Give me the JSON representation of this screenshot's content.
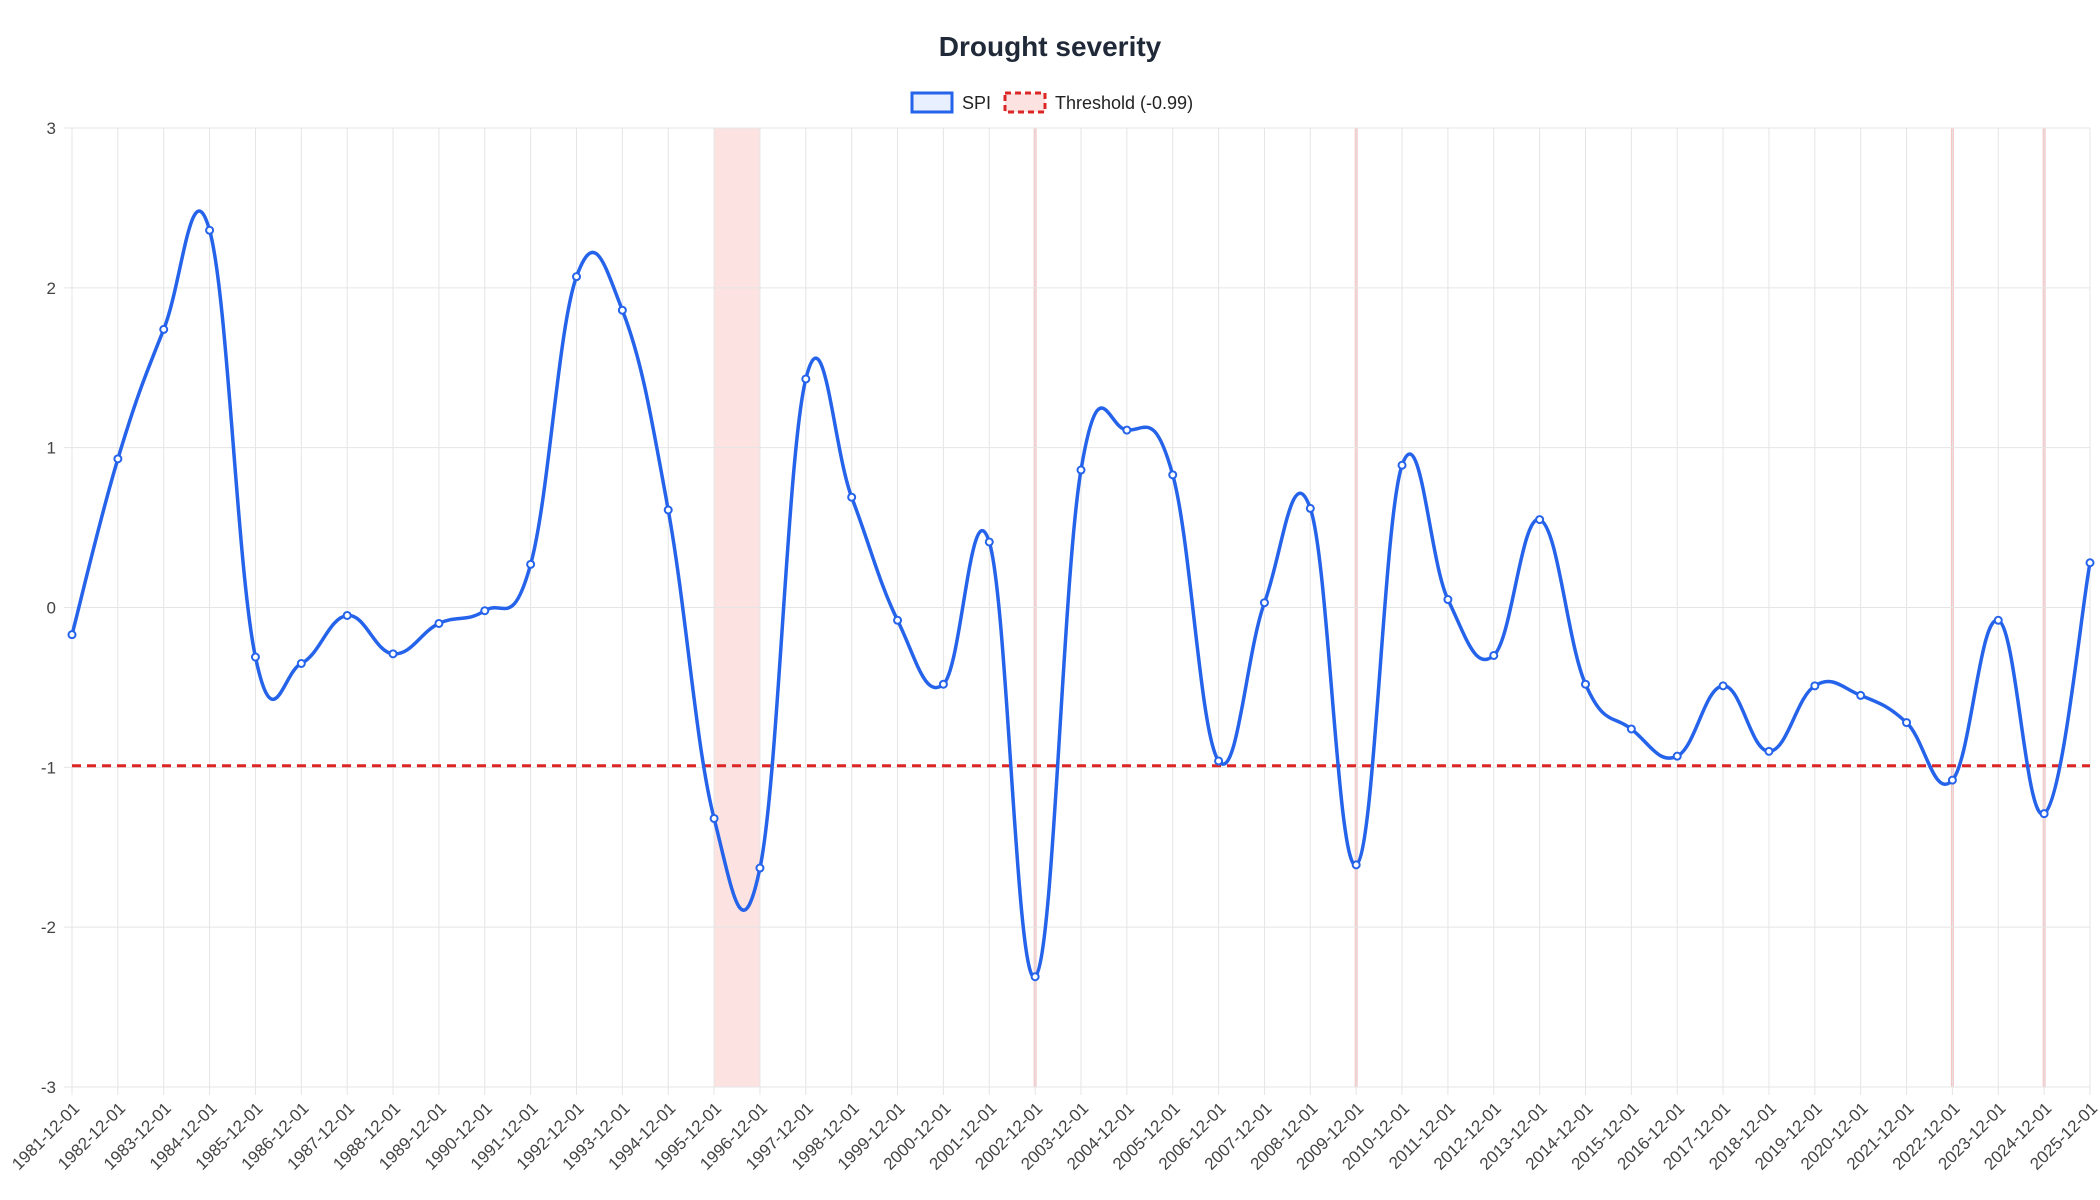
{
  "chart_data": {
    "type": "line",
    "title": "Drought severity",
    "xlabel": "",
    "ylabel": "",
    "ylim": [
      -3,
      3
    ],
    "yticks": [
      "3",
      "2",
      "1",
      "0",
      "-1",
      "-2",
      "-3"
    ],
    "grid": true,
    "legend_position": "top-center",
    "x": [
      "1981-12-01",
      "1982-12-01",
      "1983-12-01",
      "1984-12-01",
      "1985-12-01",
      "1986-12-01",
      "1987-12-01",
      "1988-12-01",
      "1989-12-01",
      "1990-12-01",
      "1991-12-01",
      "1992-12-01",
      "1993-12-01",
      "1994-12-01",
      "1995-12-01",
      "1996-12-01",
      "1997-12-01",
      "1998-12-01",
      "1999-12-01",
      "2000-12-01",
      "2001-12-01",
      "2002-12-01",
      "2003-12-01",
      "2004-12-01",
      "2005-12-01",
      "2006-12-01",
      "2007-12-01",
      "2008-12-01",
      "2009-12-01",
      "2010-12-01",
      "2011-12-01",
      "2012-12-01",
      "2013-12-01",
      "2014-12-01",
      "2015-12-01",
      "2016-12-01",
      "2017-12-01",
      "2018-12-01",
      "2019-12-01",
      "2020-12-01",
      "2021-12-01",
      "2022-12-01",
      "2023-12-01",
      "2024-12-01",
      "2025-12-01"
    ],
    "series": [
      {
        "name": "SPI",
        "color": "#2563eb",
        "values": [
          -0.17,
          0.93,
          1.74,
          2.36,
          -0.31,
          -0.35,
          -0.05,
          -0.29,
          -0.1,
          -0.02,
          0.27,
          2.07,
          1.86,
          0.61,
          -1.32,
          -1.63,
          1.43,
          0.69,
          -0.08,
          -0.48,
          0.41,
          -2.31,
          0.86,
          1.11,
          0.83,
          -0.96,
          0.03,
          0.62,
          -1.61,
          0.89,
          0.05,
          -0.3,
          0.55,
          -0.48,
          -0.76,
          -0.93,
          -0.49,
          -0.9,
          -0.49,
          -0.55,
          -0.72,
          -1.08,
          -0.08,
          -1.29,
          0.28
        ]
      },
      {
        "name": "Threshold (-0.99)",
        "color": "#dc2626",
        "style": "dashed",
        "value": -0.99
      }
    ],
    "drought_periods": [
      {
        "from": "1995-12-01",
        "to": "1996-12-01"
      },
      {
        "from": "2002-12-01",
        "to": "2002-12-01"
      },
      {
        "from": "2009-12-01",
        "to": "2009-12-01"
      },
      {
        "from": "2022-12-01",
        "to": "2022-12-01"
      },
      {
        "from": "2024-12-01",
        "to": "2024-12-01"
      }
    ],
    "drought_color": "#fde2e2"
  }
}
